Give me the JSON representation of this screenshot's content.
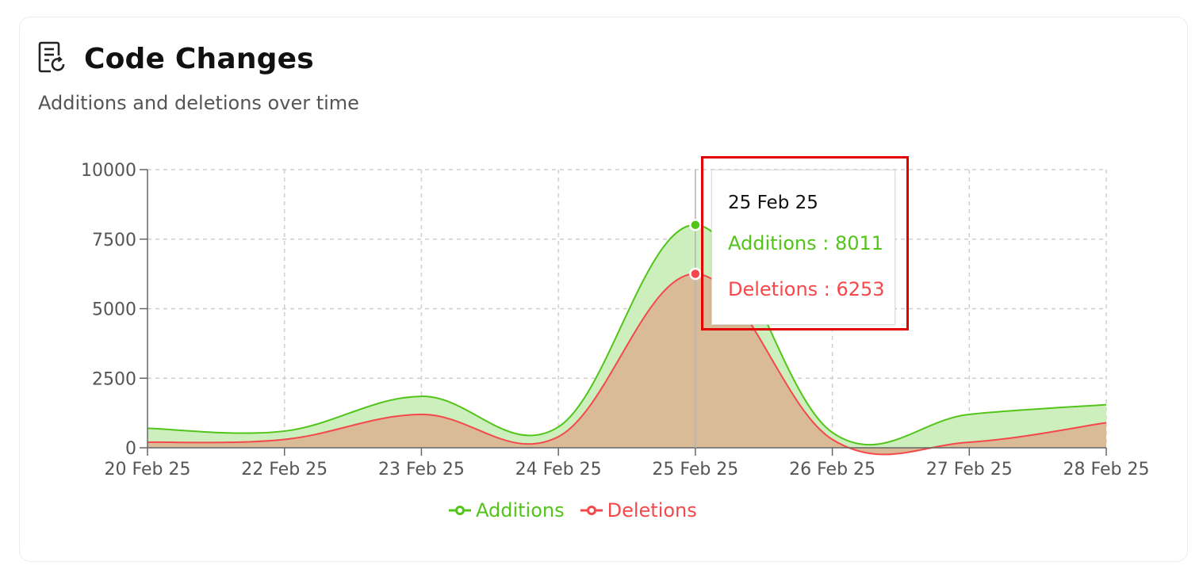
{
  "header": {
    "title": "Code Changes",
    "subtitle": "Additions and deletions over time",
    "icon": "document-refresh-icon"
  },
  "colors": {
    "additions": "#52c41a",
    "additions_fill": "#cdefbd",
    "deletions": "#f5484b",
    "deletions_fill": "#d9bb98"
  },
  "chart_data": {
    "type": "area",
    "categories": [
      "20 Feb 25",
      "22 Feb 25",
      "23 Feb 25",
      "24 Feb 25",
      "25 Feb 25",
      "26 Feb 25",
      "27 Feb 25",
      "28 Feb 25"
    ],
    "series": [
      {
        "name": "Additions",
        "values": [
          700,
          600,
          1850,
          750,
          8011,
          550,
          1200,
          1550
        ]
      },
      {
        "name": "Deletions",
        "values": [
          200,
          300,
          1200,
          400,
          6253,
          300,
          200,
          900
        ]
      }
    ],
    "y_ticks": [
      "0",
      "2500",
      "5000",
      "7500",
      "10000"
    ],
    "ylim": [
      0,
      10000
    ],
    "grid": true,
    "legend_position": "bottom-center"
  },
  "tooltip": {
    "date": "25 Feb 25",
    "additions_text": "Additions : 8011",
    "deletions_text": "Deletions : 6253"
  },
  "legend": {
    "additions_label": "Additions",
    "deletions_label": "Deletions"
  }
}
